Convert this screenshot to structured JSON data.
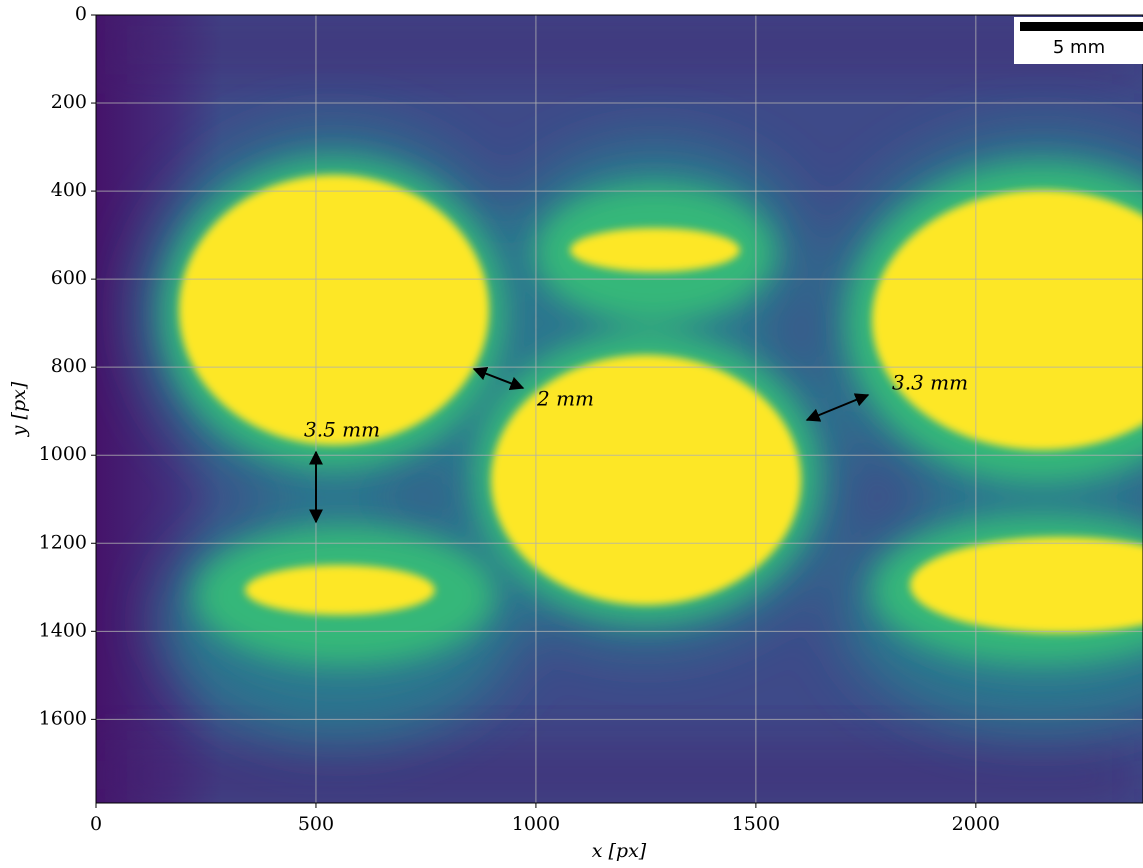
{
  "chart_data": {
    "type": "image",
    "xlabel": "x [px]",
    "ylabel": "y [px]",
    "xlim": [
      0,
      2380
    ],
    "ylim": [
      1790,
      0
    ],
    "xticks": [
      0,
      500,
      1000,
      1500,
      2000
    ],
    "yticks": [
      0,
      200,
      400,
      600,
      800,
      1000,
      1200,
      1400,
      1600
    ],
    "grid": true,
    "annotations": [
      "3.5 mm",
      "2 mm",
      "3.3 mm"
    ],
    "scale_bar": "5 mm"
  }
}
